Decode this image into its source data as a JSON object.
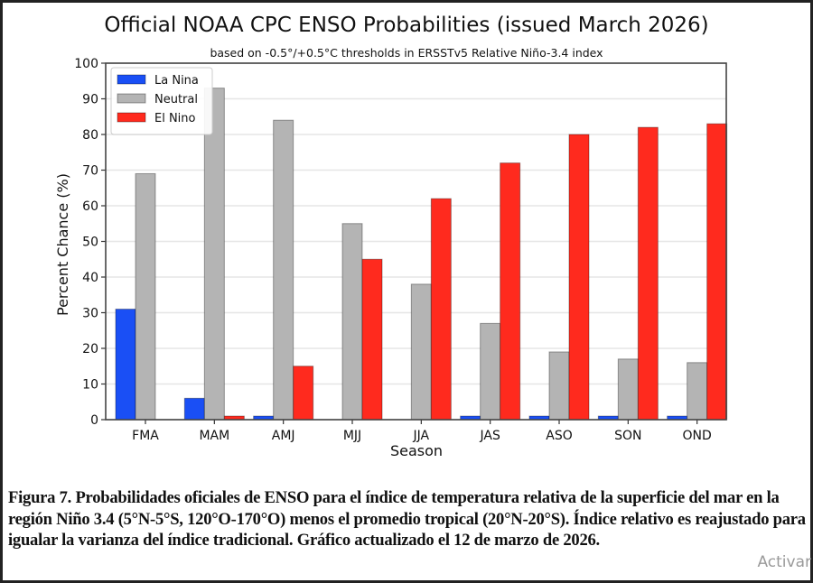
{
  "chart_data": {
    "type": "bar",
    "title": "Official NOAA CPC ENSO Probabilities (issued March 2026)",
    "subtitle": "based on -0.5°/+0.5°C thresholds in ERSSTv5 Relative Niño-3.4 index",
    "xlabel": "Season",
    "ylabel": "Percent Chance (%)",
    "ylim": [
      0,
      100
    ],
    "yticks": [
      0,
      10,
      20,
      30,
      40,
      50,
      60,
      70,
      80,
      90,
      100
    ],
    "grid": true,
    "legend_position": "top-left",
    "categories": [
      "FMA",
      "MAM",
      "AMJ",
      "MJJ",
      "JJA",
      "JAS",
      "ASO",
      "SON",
      "OND"
    ],
    "series": [
      {
        "name": "La Nina",
        "color": "#1a4ff5",
        "values": [
          31,
          6,
          1,
          0,
          0,
          1,
          1,
          1,
          1
        ]
      },
      {
        "name": "Neutral",
        "color": "#b4b4b4",
        "values": [
          69,
          93,
          84,
          55,
          38,
          27,
          19,
          17,
          16
        ]
      },
      {
        "name": "El Nino",
        "color": "#ff2a1e",
        "values": [
          0,
          1,
          15,
          45,
          62,
          72,
          80,
          82,
          83
        ]
      }
    ]
  },
  "caption": "Figura 7. Probabilidades oficiales de ENSO para el índice de temperatura relativa de la superficie del mar en la región Niño 3.4 (5°N-5°S, 120°O-170°O) menos el promedio tropical (20°N-20°S). Índice relativo es reajustado para igualar la varianza del índice tradicional. Gráfico actualizado el 12 de marzo de 2026.",
  "watermark": "Activar"
}
